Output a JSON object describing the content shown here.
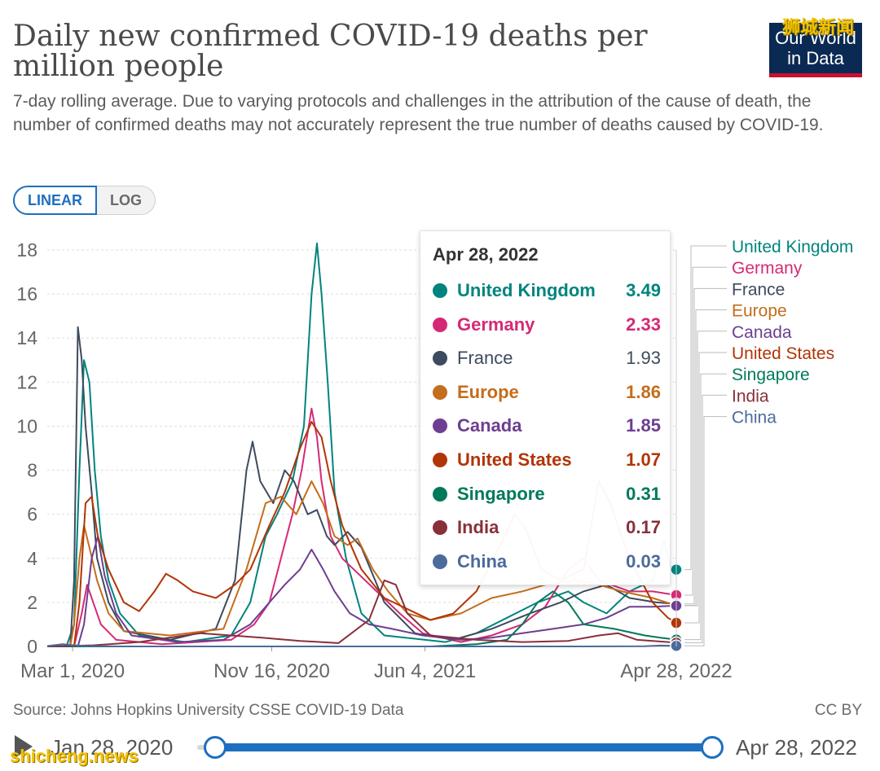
{
  "header": {
    "title": "Daily new confirmed COVID-19 deaths per million people",
    "subtitle": "7-day rolling average. Due to varying protocols and challenges in the attribution of the cause of death, the number of confirmed deaths may not accurately represent the true number of deaths caused by COVID-19.",
    "logo_line1": "Our World",
    "logo_line2": "in Data",
    "watermark_top": "狮城新闻"
  },
  "scale_toggle": {
    "linear_label": "LINEAR",
    "log_label": "LOG",
    "selected": "LINEAR"
  },
  "chart_data": {
    "type": "line",
    "title": "Daily new confirmed COVID-19 deaths per million people",
    "ylim": [
      0,
      18
    ],
    "yticks": [
      0,
      2,
      4,
      6,
      8,
      10,
      12,
      14,
      16,
      18
    ],
    "x_range_days": [
      0,
      821
    ],
    "xticks": [
      {
        "day": 33,
        "label": "Mar 1, 2020"
      },
      {
        "day": 293,
        "label": "Nov 16, 2020"
      },
      {
        "day": 493,
        "label": "Jun 4, 2021"
      },
      {
        "day": 821,
        "label": "Apr 28, 2022"
      }
    ],
    "grid": true,
    "legend_placement": "right",
    "series": [
      {
        "name": "United Kingdom",
        "color": "#00847e",
        "end_value": 3.49,
        "points": [
          [
            0,
            0
          ],
          [
            25,
            0
          ],
          [
            35,
            1
          ],
          [
            42,
            8
          ],
          [
            48,
            13
          ],
          [
            55,
            12
          ],
          [
            62,
            8
          ],
          [
            70,
            5
          ],
          [
            80,
            3
          ],
          [
            95,
            1.5
          ],
          [
            120,
            0.5
          ],
          [
            180,
            0.2
          ],
          [
            240,
            0.5
          ],
          [
            265,
            2
          ],
          [
            285,
            5
          ],
          [
            300,
            6
          ],
          [
            320,
            7.5
          ],
          [
            335,
            10
          ],
          [
            345,
            16
          ],
          [
            352,
            18.3
          ],
          [
            358,
            16
          ],
          [
            366,
            12
          ],
          [
            375,
            7
          ],
          [
            390,
            4
          ],
          [
            410,
            1.5
          ],
          [
            440,
            0.5
          ],
          [
            520,
            0.2
          ],
          [
            560,
            0.6
          ],
          [
            600,
            1.3
          ],
          [
            640,
            2
          ],
          [
            680,
            2.5
          ],
          [
            700,
            2
          ],
          [
            730,
            1.5
          ],
          [
            760,
            2.5
          ],
          [
            790,
            3
          ],
          [
            805,
            4.8
          ],
          [
            813,
            3.6
          ],
          [
            821,
            3.49
          ]
        ]
      },
      {
        "name": "Germany",
        "color": "#d42a76",
        "end_value": 2.33,
        "points": [
          [
            0,
            0
          ],
          [
            35,
            0
          ],
          [
            45,
            1.5
          ],
          [
            52,
            2.8
          ],
          [
            60,
            2
          ],
          [
            70,
            1
          ],
          [
            90,
            0.3
          ],
          [
            150,
            0.1
          ],
          [
            240,
            0.3
          ],
          [
            270,
            1
          ],
          [
            290,
            2
          ],
          [
            305,
            4
          ],
          [
            320,
            6
          ],
          [
            332,
            8
          ],
          [
            345,
            10.8
          ],
          [
            352,
            9.5
          ],
          [
            358,
            7.5
          ],
          [
            370,
            5
          ],
          [
            385,
            4
          ],
          [
            400,
            3.5
          ],
          [
            430,
            2.5
          ],
          [
            460,
            1.5
          ],
          [
            490,
            0.6
          ],
          [
            540,
            0.2
          ],
          [
            580,
            0.5
          ],
          [
            620,
            1
          ],
          [
            650,
            1.8
          ],
          [
            680,
            3.5
          ],
          [
            700,
            4
          ],
          [
            720,
            3
          ],
          [
            760,
            2.5
          ],
          [
            790,
            2.5
          ],
          [
            821,
            2.33
          ]
        ]
      },
      {
        "name": "France",
        "color": "#3e4b5e",
        "end_value": 1.93,
        "points": [
          [
            0,
            0
          ],
          [
            30,
            0
          ],
          [
            35,
            3
          ],
          [
            40,
            14.5
          ],
          [
            45,
            13
          ],
          [
            50,
            10
          ],
          [
            58,
            7
          ],
          [
            65,
            4
          ],
          [
            80,
            2
          ],
          [
            100,
            0.7
          ],
          [
            160,
            0.3
          ],
          [
            220,
            0.8
          ],
          [
            245,
            3
          ],
          [
            260,
            8
          ],
          [
            268,
            9.3
          ],
          [
            278,
            7.5
          ],
          [
            295,
            6.5
          ],
          [
            310,
            8
          ],
          [
            322,
            7.5
          ],
          [
            340,
            6
          ],
          [
            352,
            6.2
          ],
          [
            365,
            5
          ],
          [
            375,
            4.6
          ],
          [
            392,
            5.2
          ],
          [
            410,
            4.5
          ],
          [
            440,
            2
          ],
          [
            480,
            0.6
          ],
          [
            530,
            0.3
          ],
          [
            580,
            0.8
          ],
          [
            630,
            1.5
          ],
          [
            670,
            2
          ],
          [
            700,
            2.5
          ],
          [
            730,
            2.8
          ],
          [
            760,
            2.2
          ],
          [
            795,
            2
          ],
          [
            821,
            1.93
          ]
        ]
      },
      {
        "name": "Europe",
        "color": "#c46d1c",
        "end_value": 1.86,
        "points": [
          [
            0,
            0
          ],
          [
            30,
            0
          ],
          [
            35,
            1
          ],
          [
            42,
            4
          ],
          [
            48,
            5.5
          ],
          [
            55,
            4.5
          ],
          [
            65,
            3
          ],
          [
            80,
            1.5
          ],
          [
            100,
            0.7
          ],
          [
            160,
            0.5
          ],
          [
            230,
            0.8
          ],
          [
            260,
            3.5
          ],
          [
            285,
            6.5
          ],
          [
            305,
            6.8
          ],
          [
            325,
            6
          ],
          [
            345,
            7.5
          ],
          [
            360,
            6.5
          ],
          [
            375,
            5
          ],
          [
            392,
            4.6
          ],
          [
            405,
            4.9
          ],
          [
            425,
            3.5
          ],
          [
            445,
            2.5
          ],
          [
            470,
            1.5
          ],
          [
            500,
            1.2
          ],
          [
            540,
            1.5
          ],
          [
            580,
            2.2
          ],
          [
            620,
            2.5
          ],
          [
            650,
            2.8
          ],
          [
            690,
            3
          ],
          [
            720,
            2.8
          ],
          [
            750,
            2.5
          ],
          [
            790,
            2.2
          ],
          [
            821,
            1.86
          ]
        ]
      },
      {
        "name": "Canada",
        "color": "#6d3e91",
        "end_value": 1.85,
        "points": [
          [
            0,
            0
          ],
          [
            40,
            0
          ],
          [
            48,
            1
          ],
          [
            58,
            4
          ],
          [
            66,
            5
          ],
          [
            75,
            3.2
          ],
          [
            90,
            1.5
          ],
          [
            110,
            0.5
          ],
          [
            170,
            0.2
          ],
          [
            230,
            0.3
          ],
          [
            265,
            1
          ],
          [
            290,
            2
          ],
          [
            310,
            2.8
          ],
          [
            330,
            3.5
          ],
          [
            345,
            4.4
          ],
          [
            360,
            3.5
          ],
          [
            375,
            2.5
          ],
          [
            395,
            1.5
          ],
          [
            420,
            1
          ],
          [
            450,
            0.8
          ],
          [
            490,
            0.5
          ],
          [
            540,
            0.3
          ],
          [
            580,
            0.4
          ],
          [
            620,
            0.6
          ],
          [
            660,
            0.8
          ],
          [
            700,
            1
          ],
          [
            730,
            1.3
          ],
          [
            760,
            1.8
          ],
          [
            790,
            1.8
          ],
          [
            821,
            1.85
          ]
        ]
      },
      {
        "name": "United States",
        "color": "#b13507",
        "end_value": 1.07,
        "points": [
          [
            0,
            0
          ],
          [
            35,
            0
          ],
          [
            42,
            2
          ],
          [
            50,
            6.5
          ],
          [
            58,
            6.8
          ],
          [
            66,
            5
          ],
          [
            80,
            3.5
          ],
          [
            100,
            2
          ],
          [
            120,
            1.6
          ],
          [
            140,
            2.5
          ],
          [
            155,
            3.3
          ],
          [
            170,
            3
          ],
          [
            190,
            2.5
          ],
          [
            220,
            2.2
          ],
          [
            245,
            2.8
          ],
          [
            265,
            3.5
          ],
          [
            290,
            5.5
          ],
          [
            310,
            7
          ],
          [
            330,
            9
          ],
          [
            345,
            10.2
          ],
          [
            358,
            9.5
          ],
          [
            370,
            7.5
          ],
          [
            385,
            5.5
          ],
          [
            410,
            3.5
          ],
          [
            440,
            2.2
          ],
          [
            470,
            1.7
          ],
          [
            500,
            1.2
          ],
          [
            530,
            1.5
          ],
          [
            560,
            2.5
          ],
          [
            590,
            4.5
          ],
          [
            610,
            6
          ],
          [
            625,
            5.3
          ],
          [
            645,
            3.5
          ],
          [
            670,
            3
          ],
          [
            700,
            3.5
          ],
          [
            720,
            7.5
          ],
          [
            735,
            6.5
          ],
          [
            760,
            4
          ],
          [
            790,
            2
          ],
          [
            810,
            1.3
          ],
          [
            821,
            1.07
          ]
        ]
      },
      {
        "name": "Singapore",
        "color": "#00795b",
        "end_value": 0.31,
        "points": [
          [
            0,
            0
          ],
          [
            500,
            0
          ],
          [
            560,
            0.1
          ],
          [
            600,
            0.3
          ],
          [
            620,
            1
          ],
          [
            640,
            2
          ],
          [
            660,
            2.5
          ],
          [
            680,
            2
          ],
          [
            700,
            1
          ],
          [
            740,
            0.8
          ],
          [
            780,
            0.5
          ],
          [
            800,
            0.4
          ],
          [
            821,
            0.31
          ]
        ]
      },
      {
        "name": "India",
        "color": "#883039",
        "end_value": 0.17,
        "points": [
          [
            0,
            0
          ],
          [
            60,
            0.05
          ],
          [
            120,
            0.2
          ],
          [
            170,
            0.45
          ],
          [
            200,
            0.6
          ],
          [
            240,
            0.5
          ],
          [
            280,
            0.4
          ],
          [
            330,
            0.25
          ],
          [
            380,
            0.15
          ],
          [
            420,
            1.2
          ],
          [
            440,
            3
          ],
          [
            455,
            2.8
          ],
          [
            470,
            1.5
          ],
          [
            500,
            0.5
          ],
          [
            560,
            0.3
          ],
          [
            620,
            0.2
          ],
          [
            680,
            0.25
          ],
          [
            720,
            0.5
          ],
          [
            745,
            0.6
          ],
          [
            770,
            0.3
          ],
          [
            821,
            0.17
          ]
        ]
      },
      {
        "name": "China",
        "color": "#4c6a9c",
        "end_value": 0.03,
        "points": [
          [
            0,
            0.02
          ],
          [
            20,
            0.1
          ],
          [
            33,
            0.06
          ],
          [
            50,
            0.02
          ],
          [
            100,
            0
          ],
          [
            700,
            0
          ],
          [
            780,
            0.01
          ],
          [
            800,
            0.04
          ],
          [
            821,
            0.03
          ]
        ]
      }
    ]
  },
  "tooltip": {
    "date": "Apr 28, 2022",
    "rows": [
      {
        "name": "United Kingdom",
        "value": "3.49",
        "color": "#00847e"
      },
      {
        "name": "Germany",
        "value": "2.33",
        "color": "#d42a76"
      },
      {
        "name": "France",
        "value": "1.93",
        "color": "#3e4b5e"
      },
      {
        "name": "Europe",
        "value": "1.86",
        "color": "#c46d1c"
      },
      {
        "name": "Canada",
        "value": "1.85",
        "color": "#6d3e91"
      },
      {
        "name": "United States",
        "value": "1.07",
        "color": "#b13507"
      },
      {
        "name": "Singapore",
        "value": "0.31",
        "color": "#00795b"
      },
      {
        "name": "India",
        "value": "0.17",
        "color": "#883039"
      },
      {
        "name": "China",
        "value": "0.03",
        "color": "#4c6a9c"
      }
    ]
  },
  "footer": {
    "source": "Source: Johns Hopkins University CSSE COVID-19 Data",
    "license": "CC BY"
  },
  "timeline": {
    "start_label": "Jan 28, 2020",
    "end_label": "Apr 28, 2022",
    "start_fraction": 0,
    "end_fraction": 1
  },
  "watermark_bottom": "shicheng.news"
}
